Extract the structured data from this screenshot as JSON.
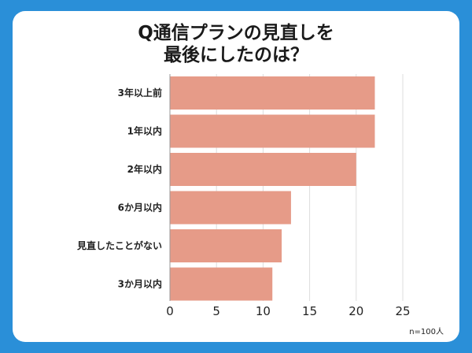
{
  "title_lines": [
    "Q通信プランの見直しを",
    "最後にしたのは？"
  ],
  "sample_note": "n=100人",
  "colors": {
    "background": "#2a8fd8",
    "card": "#ffffff",
    "bar": "#e69b88",
    "grid": "#dddddd",
    "text": "#222222"
  },
  "chart_data": {
    "type": "bar",
    "orientation": "horizontal",
    "title": "Q通信プランの見直しを最後にしたのは？",
    "categories": [
      "3年以上前",
      "1年以内",
      "2年以内",
      "6か月以内",
      "見直したことがない",
      "3か月以内"
    ],
    "values": [
      22,
      22,
      20,
      13,
      12,
      11
    ],
    "xlim": [
      0,
      25
    ],
    "xticks": [
      0,
      5,
      10,
      15,
      20,
      25
    ],
    "grid": true,
    "legend": "none"
  }
}
